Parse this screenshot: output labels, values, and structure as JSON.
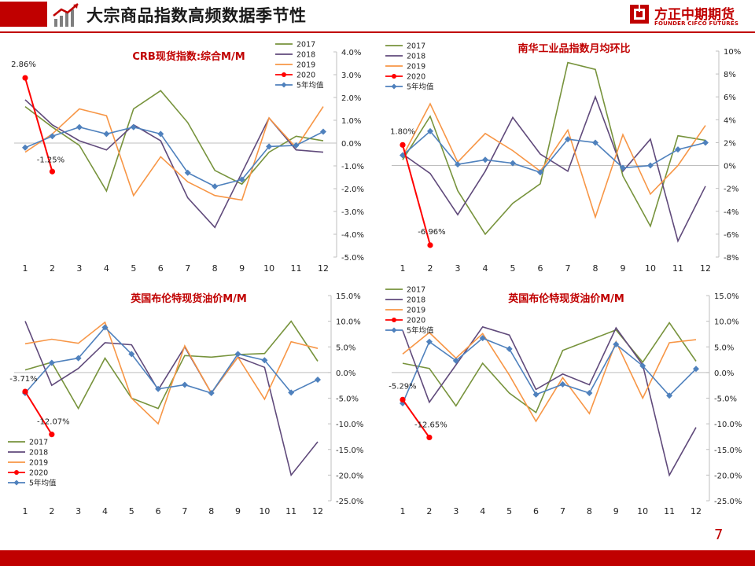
{
  "header": {
    "title": "大宗商品指数高频数据季节性"
  },
  "logo": {
    "name": "方正中期期货",
    "sub": "FOUNDER CIFCO FUTURES"
  },
  "page_number": "7",
  "colors": {
    "2017": "#77933c",
    "2018": "#604a7b",
    "2019": "#f79646",
    "2020": "#ff0000",
    "avg": "#4f81bd",
    "title_red": "#c00000"
  },
  "chart_data": [
    {
      "type": "line",
      "title": "CRB现货指数:综合M/M",
      "categories": [
        "1",
        "2",
        "3",
        "4",
        "5",
        "6",
        "7",
        "8",
        "9",
        "10",
        "11",
        "12"
      ],
      "ylim": [
        -5,
        4
      ],
      "yticks": [
        4,
        3,
        2,
        1,
        0,
        -1,
        -2,
        -3,
        -4,
        -5
      ],
      "ytick_labels": [
        "4.0%",
        "3.0%",
        "2.0%",
        "1.0%",
        "0.0%",
        "-1.0%",
        "-2.0%",
        "-3.0%",
        "-4.0%",
        "-5.0%"
      ],
      "legend_position": "top-right",
      "series": [
        {
          "name": "2017",
          "color": "#77933c",
          "values": [
            1.6,
            0.7,
            -0.1,
            -2.1,
            1.5,
            2.3,
            0.9,
            -1.2,
            -1.8,
            -0.4,
            0.3,
            0.1
          ]
        },
        {
          "name": "2018",
          "color": "#604a7b",
          "values": [
            1.9,
            0.8,
            0.1,
            -0.3,
            0.8,
            0.1,
            -2.4,
            -3.7,
            -1.3,
            1.1,
            -0.3,
            -0.4
          ]
        },
        {
          "name": "2019",
          "color": "#f79646",
          "values": [
            -0.4,
            0.4,
            1.5,
            1.2,
            -2.3,
            -0.6,
            -1.7,
            -2.3,
            -2.5,
            1.1,
            -0.2,
            1.6
          ]
        },
        {
          "name": "2020",
          "color": "#ff0000",
          "values": [
            2.86,
            -1.25,
            null,
            null,
            null,
            null,
            null,
            null,
            null,
            null,
            null,
            null
          ]
        },
        {
          "name": "5年均值",
          "color": "#4f81bd",
          "values": [
            -0.2,
            0.3,
            0.7,
            0.4,
            0.7,
            0.4,
            -1.3,
            -1.9,
            -1.6,
            -0.15,
            -0.1,
            0.5
          ]
        }
      ],
      "annotations": [
        "2.86%",
        "-1.25%"
      ]
    },
    {
      "type": "line",
      "title": "南华工业品指数月均环比",
      "categories": [
        "1",
        "2",
        "3",
        "4",
        "5",
        "6",
        "7",
        "8",
        "9",
        "10",
        "11",
        "12"
      ],
      "ylim": [
        -8,
        10
      ],
      "yticks": [
        10,
        8,
        6,
        4,
        2,
        0,
        -2,
        -4,
        -6,
        -8
      ],
      "ytick_labels": [
        "10%",
        "8%",
        "6%",
        "4%",
        "2%",
        "0%",
        "-2%",
        "-4%",
        "-6%",
        "-8%"
      ],
      "legend_position": "top-left",
      "series": [
        {
          "name": "2017",
          "color": "#77933c",
          "values": [
            0.5,
            4.3,
            -2.2,
            -6.0,
            -3.3,
            -1.6,
            9.0,
            8.4,
            -0.9,
            -5.3,
            2.6,
            2.2
          ]
        },
        {
          "name": "2018",
          "color": "#604a7b",
          "values": [
            1.0,
            -0.7,
            -4.3,
            -0.5,
            4.2,
            1.0,
            -0.5,
            6.0,
            -0.5,
            2.3,
            -6.6,
            -1.8
          ]
        },
        {
          "name": "2019",
          "color": "#f79646",
          "values": [
            0.8,
            5.4,
            0.3,
            2.8,
            1.3,
            -0.5,
            3.1,
            -4.5,
            2.7,
            -2.5,
            0.0,
            3.5
          ]
        },
        {
          "name": "2020",
          "color": "#ff0000",
          "values": [
            1.8,
            -6.96,
            null,
            null,
            null,
            null,
            null,
            null,
            null,
            null,
            null,
            null
          ]
        },
        {
          "name": "5年均值",
          "color": "#4f81bd",
          "values": [
            0.9,
            3.0,
            0.1,
            0.5,
            0.2,
            -0.6,
            2.3,
            2.0,
            -0.2,
            0.0,
            1.4,
            2.0
          ]
        }
      ],
      "annotations": [
        "1.80%",
        "-6.96%"
      ]
    },
    {
      "type": "line",
      "title": "英国布伦特现货油价M/M",
      "categories": [
        "1",
        "2",
        "3",
        "4",
        "5",
        "6",
        "7",
        "8",
        "9",
        "10",
        "11",
        "12"
      ],
      "ylim": [
        -25,
        15
      ],
      "yticks": [
        15,
        10,
        5,
        0,
        -5,
        -10,
        -15,
        -20,
        -25
      ],
      "ytick_labels": [
        "15.0%",
        "10.0%",
        "5.0%",
        "0.0%",
        "-5.0%",
        "-10.0%",
        "-15.0%",
        "-20.0%",
        "-25.0%"
      ],
      "legend_position": "bottom-left",
      "series": [
        {
          "name": "2017",
          "color": "#77933c",
          "values": [
            0.5,
            2.0,
            -7.0,
            2.8,
            -5.0,
            -7.0,
            3.3,
            3.0,
            3.5,
            3.7,
            10.0,
            2.2
          ]
        },
        {
          "name": "2018",
          "color": "#604a7b",
          "values": [
            10.0,
            -2.5,
            0.8,
            5.8,
            5.4,
            -3.4,
            5.0,
            -4.0,
            3.0,
            1.0,
            -20.0,
            -13.5
          ]
        },
        {
          "name": "2019",
          "color": "#f79646",
          "values": [
            5.6,
            6.5,
            5.7,
            9.8,
            -5.0,
            -10.0,
            5.2,
            -4.0,
            3.0,
            -5.2,
            6.0,
            4.7
          ]
        },
        {
          "name": "2020",
          "color": "#ff0000",
          "values": [
            -3.71,
            -12.07,
            null,
            null,
            null,
            null,
            null,
            null,
            null,
            null,
            null,
            null
          ]
        },
        {
          "name": "5年均值",
          "color": "#4f81bd",
          "values": [
            -4.0,
            1.9,
            2.8,
            8.8,
            3.6,
            -3.2,
            -2.4,
            -4.0,
            3.6,
            2.4,
            -3.9,
            -1.4
          ]
        }
      ],
      "annotations": [
        "-3.71%",
        "-12.07%"
      ]
    },
    {
      "type": "line",
      "title": "英国布伦特现货油价M/M",
      "categories": [
        "1",
        "2",
        "3",
        "4",
        "5",
        "6",
        "7",
        "8",
        "9",
        "10",
        "11",
        "12"
      ],
      "ylim": [
        -25,
        15
      ],
      "yticks": [
        15,
        10,
        5,
        0,
        -5,
        -10,
        -15,
        -20,
        -25
      ],
      "ytick_labels": [
        "15.0%",
        "10.0%",
        "5.0%",
        "0.0%",
        "-5.0%",
        "-10.0%",
        "-15.0%",
        "-20.0%",
        "-25.0%"
      ],
      "legend_position": "top-left",
      "series": [
        {
          "name": "2017",
          "color": "#77933c",
          "values": [
            1.8,
            0.8,
            -6.5,
            1.8,
            -4.0,
            -7.8,
            4.3,
            6.3,
            8.3,
            2.0,
            9.7,
            2.2
          ]
        },
        {
          "name": "2018",
          "color": "#604a7b",
          "values": [
            8.2,
            -5.8,
            1.5,
            8.9,
            7.3,
            -3.3,
            -0.3,
            -2.4,
            8.7,
            1.5,
            -20.0,
            -10.7
          ]
        },
        {
          "name": "2019",
          "color": "#f79646",
          "values": [
            3.6,
            7.8,
            2.8,
            7.6,
            -0.5,
            -9.5,
            -1.0,
            -8.0,
            6.0,
            -5.0,
            5.8,
            6.4
          ]
        },
        {
          "name": "2020",
          "color": "#ff0000",
          "values": [
            -5.29,
            -12.65,
            null,
            null,
            null,
            null,
            null,
            null,
            null,
            null,
            null,
            null
          ]
        },
        {
          "name": "5年均值",
          "color": "#4f81bd",
          "values": [
            -6.0,
            6.0,
            2.3,
            6.7,
            4.6,
            -4.3,
            -2.3,
            -4.0,
            5.5,
            1.3,
            -4.5,
            0.7
          ]
        }
      ],
      "annotations": [
        "-5.29%",
        "-12.65%"
      ]
    }
  ]
}
